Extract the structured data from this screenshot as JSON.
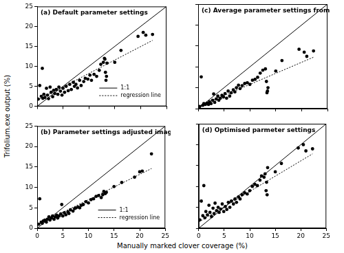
{
  "xlabel": "Manually marked clover coverage (%)",
  "ylabel": "Trifolium.exe output (%)",
  "chart_data": [
    {
      "type": "scatter",
      "title": "(a) Default parameter settings",
      "xlim": [
        0,
        25
      ],
      "ylim": [
        0,
        25
      ],
      "xticks": [
        0,
        5,
        10,
        15,
        20,
        25
      ],
      "yticks": [
        0,
        5,
        10,
        15,
        20,
        25
      ],
      "grid": false,
      "legend": "lower right",
      "tick_labels": "y",
      "series": [
        {
          "type": "scatter",
          "color": "#000000",
          "marker": "circle",
          "x": [
            0.2,
            0.5,
            0.8,
            1.0,
            1.1,
            1.3,
            1.5,
            1.8,
            2.0,
            2.2,
            2.5,
            2.7,
            3.0,
            3.2,
            3.4,
            3.7,
            4.0,
            4.2,
            4.5,
            4.8,
            5.0,
            5.3,
            5.6,
            6.0,
            6.3,
            6.6,
            7.0,
            7.2,
            7.5,
            7.8,
            8.2,
            8.5,
            9.0,
            9.3,
            9.8,
            10.2,
            10.5,
            11.0,
            11.5,
            12.0,
            12.3,
            12.8,
            13.0,
            13.2,
            13.4,
            13.5,
            13.1,
            13.3,
            15.0,
            16.2,
            19.5,
            20.5,
            21.0,
            22.3
          ],
          "values": [
            1.8,
            5.2,
            2.5,
            9.5,
            2.0,
            3.0,
            2.2,
            4.5,
            2.8,
            1.9,
            4.8,
            3.5,
            2.4,
            4.0,
            3.2,
            4.2,
            3.0,
            4.8,
            3.8,
            2.8,
            4.5,
            3.5,
            5.0,
            3.9,
            5.5,
            4.2,
            6.0,
            5.0,
            5.5,
            4.6,
            6.5,
            5.2,
            6.2,
            7.0,
            6.8,
            7.8,
            6.5,
            8.0,
            7.5,
            9.0,
            10.5,
            11.0,
            12.0,
            8.5,
            7.5,
            10.8,
            11.8,
            6.5,
            11.0,
            14.0,
            17.5,
            18.5,
            17.8,
            18.0
          ]
        },
        {
          "name": "1:1",
          "type": "line",
          "color": "#000000",
          "line_style": "solid",
          "x": [
            0,
            25
          ],
          "values": [
            0,
            25
          ]
        },
        {
          "name": "regression line",
          "type": "line",
          "color": "#000000",
          "line_style": "dotted",
          "x": [
            0,
            22.3
          ],
          "values": [
            1.5,
            16.5
          ]
        }
      ]
    },
    {
      "type": "scatter",
      "title": "(b) Parameter settings adjusted image wise",
      "xlim": [
        0,
        25
      ],
      "ylim": [
        0,
        25
      ],
      "xticks": [
        0,
        5,
        10,
        15,
        20,
        25
      ],
      "yticks": [
        0,
        5,
        10,
        15,
        20,
        25
      ],
      "grid": false,
      "legend": "lower right",
      "tick_labels": true,
      "series": [
        {
          "type": "scatter",
          "color": "#000000",
          "marker": "circle",
          "x": [
            0.3,
            0.5,
            0.8,
            1.0,
            1.2,
            1.5,
            1.8,
            2.0,
            2.3,
            2.5,
            2.8,
            3.0,
            3.3,
            3.5,
            3.8,
            4.0,
            4.3,
            4.6,
            4.8,
            5.0,
            5.3,
            5.6,
            6.0,
            6.2,
            6.5,
            7.0,
            7.3,
            7.6,
            8.0,
            8.3,
            8.6,
            9.0,
            9.5,
            10.0,
            10.5,
            11.0,
            11.5,
            12.0,
            12.5,
            12.8,
            13.0,
            13.3,
            13.5,
            15.0,
            16.5,
            19.0,
            20.0,
            20.5,
            22.3
          ],
          "values": [
            1.0,
            7.2,
            1.5,
            1.2,
            1.8,
            2.0,
            1.5,
            2.2,
            2.8,
            2.0,
            2.5,
            3.0,
            2.2,
            2.8,
            3.2,
            2.5,
            3.0,
            3.5,
            5.8,
            3.0,
            3.8,
            3.3,
            4.0,
            3.6,
            4.5,
            4.2,
            4.8,
            5.0,
            5.2,
            5.0,
            5.6,
            5.8,
            6.5,
            6.2,
            7.0,
            7.2,
            7.8,
            8.0,
            7.5,
            8.2,
            9.0,
            8.5,
            8.8,
            10.2,
            11.2,
            12.5,
            13.8,
            14.0,
            18.2
          ]
        },
        {
          "name": "1:1",
          "type": "line",
          "color": "#000000",
          "line_style": "solid",
          "x": [
            0,
            25
          ],
          "values": [
            0,
            25
          ]
        },
        {
          "name": "regression line",
          "type": "line",
          "color": "#000000",
          "line_style": "dotted",
          "x": [
            0,
            22.3
          ],
          "values": [
            0.8,
            14.6
          ]
        }
      ]
    },
    {
      "type": "scatter",
      "title": "(c) Average parameter settings from (b)",
      "xlim": [
        0,
        25
      ],
      "ylim": [
        0,
        25
      ],
      "xticks": [
        0,
        5,
        10,
        15,
        20,
        25
      ],
      "yticks": [
        0,
        5,
        10,
        15,
        20,
        25
      ],
      "grid": false,
      "tick_labels": false,
      "series": [
        {
          "type": "scatter",
          "color": "#000000",
          "marker": "circle",
          "x": [
            0.3,
            0.6,
            0.9,
            1.1,
            1.4,
            1.7,
            2.0,
            2.2,
            2.5,
            2.8,
            3.0,
            3.2,
            3.5,
            3.8,
            4.0,
            4.3,
            4.6,
            4.9,
            5.2,
            5.5,
            5.8,
            6.1,
            6.4,
            6.8,
            7.1,
            7.4,
            7.8,
            8.1,
            8.5,
            9.0,
            9.5,
            10.0,
            10.5,
            11.0,
            11.5,
            12.0,
            12.5,
            13.0,
            13.2,
            13.4,
            13.5,
            13.3,
            15.0,
            16.2,
            19.5,
            20.5,
            21.0,
            22.3
          ],
          "values": [
            0.5,
            7.6,
            0.8,
            1.2,
            1.0,
            1.3,
            1.0,
            1.6,
            1.2,
            2.0,
            3.5,
            1.5,
            2.3,
            3.0,
            2.0,
            2.5,
            3.2,
            2.8,
            3.6,
            2.5,
            4.2,
            3.0,
            3.8,
            4.5,
            4.0,
            5.0,
            5.6,
            4.8,
            5.5,
            6.0,
            6.2,
            5.8,
            6.8,
            7.0,
            7.5,
            8.5,
            9.2,
            9.5,
            6.5,
            4.2,
            5.0,
            3.8,
            9.0,
            11.5,
            14.2,
            13.5,
            12.5,
            13.8
          ]
        },
        {
          "type": "line",
          "color": "#000000",
          "line_style": "solid",
          "x": [
            0,
            25
          ],
          "values": [
            0,
            25
          ]
        },
        {
          "type": "line",
          "color": "#000000",
          "line_style": "dotted",
          "x": [
            0,
            22.3
          ],
          "values": [
            0.5,
            12.3
          ]
        }
      ]
    },
    {
      "type": "scatter",
      "title": "(d) Optimised parmeter settings",
      "xlim": [
        0,
        25
      ],
      "ylim": [
        0,
        25
      ],
      "xticks": [
        0,
        5,
        10,
        15,
        20,
        25
      ],
      "yticks": [
        0,
        5,
        10,
        15,
        20,
        25
      ],
      "grid": false,
      "tick_labels": "x",
      "series": [
        {
          "type": "scatter",
          "color": "#000000",
          "marker": "circle",
          "x": [
            0.2,
            0.5,
            0.8,
            1.0,
            1.2,
            1.4,
            1.7,
            2.0,
            2.2,
            2.5,
            2.8,
            3.0,
            3.2,
            3.5,
            3.8,
            4.0,
            4.3,
            4.6,
            4.9,
            5.2,
            5.5,
            5.8,
            6.1,
            6.4,
            6.8,
            7.1,
            7.4,
            7.8,
            8.1,
            8.5,
            9.0,
            9.5,
            10.0,
            10.5,
            11.0,
            11.5,
            12.0,
            12.3,
            12.8,
            13.0,
            13.2,
            13.4,
            13.5,
            13.3,
            15.0,
            16.2,
            19.5,
            20.5,
            21.0,
            22.3
          ],
          "values": [
            2.0,
            6.5,
            3.0,
            10.2,
            2.5,
            4.0,
            3.2,
            5.5,
            3.8,
            2.8,
            4.8,
            3.5,
            6.0,
            4.2,
            5.0,
            3.8,
            4.6,
            5.8,
            4.0,
            5.2,
            4.5,
            6.2,
            5.0,
            6.5,
            5.8,
            7.0,
            6.2,
            7.5,
            7.0,
            8.0,
            8.5,
            8.2,
            9.0,
            10.0,
            10.5,
            10.2,
            11.5,
            12.5,
            12.2,
            13.0,
            9.0,
            8.0,
            14.5,
            11.0,
            13.5,
            15.5,
            19.2,
            20.0,
            18.5,
            19.0
          ]
        },
        {
          "type": "line",
          "color": "#000000",
          "line_style": "solid",
          "x": [
            0,
            25
          ],
          "values": [
            0,
            25
          ]
        },
        {
          "type": "line",
          "color": "#000000",
          "line_style": "dotted",
          "x": [
            0,
            22.3
          ],
          "values": [
            1.5,
            17.8
          ]
        }
      ]
    }
  ]
}
